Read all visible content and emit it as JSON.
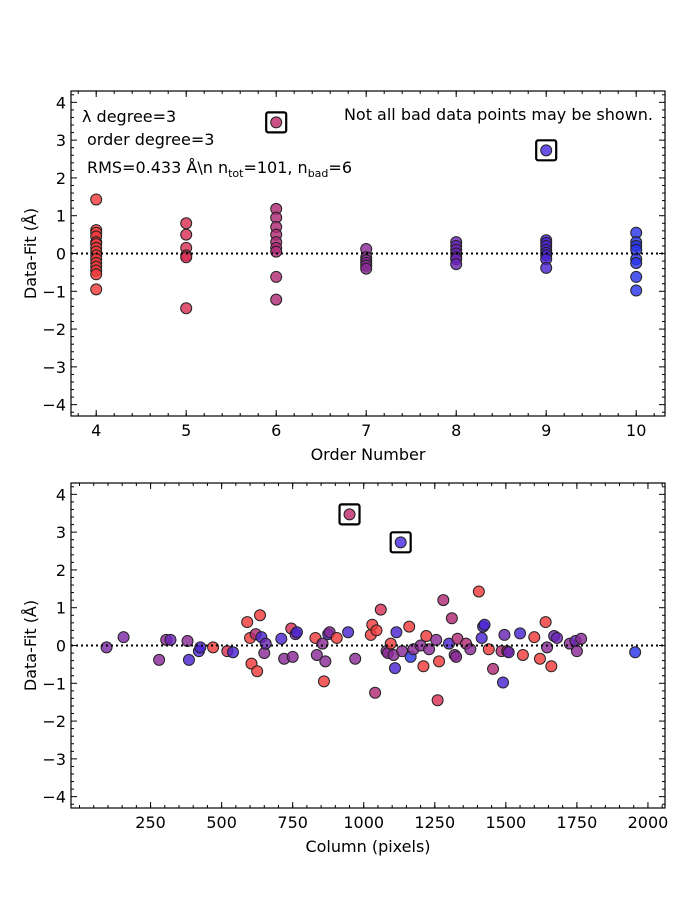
{
  "chart_data": [
    {
      "type": "scatter",
      "xlabel": "Order Number",
      "ylabel": "Data-Fit (Å)",
      "xlim": [
        3.72,
        10.32
      ],
      "ylim": [
        -4.3,
        4.3
      ],
      "xticks": [
        "4",
        "5",
        "6",
        "7",
        "8",
        "9",
        "10"
      ],
      "yticks": [
        "−4",
        "−3",
        "−2",
        "−1",
        "0",
        "1",
        "2",
        "3",
        "4"
      ],
      "annotations": {
        "lambda_degree": "λ degree=3",
        "order_degree": "order degree=3",
        "rms_prefix": "RMS=0.433 Å\\n n",
        "ntot_sub": "tot",
        "ntot_value": "=101, n",
        "nbad_sub": "bad",
        "nbad_value": "=6",
        "warning": "Not all bad data points may be shown."
      },
      "good_points": [
        [
          4,
          1.43,
          "#f03a3a"
        ],
        [
          4,
          0.62,
          "#f03a3a"
        ],
        [
          4,
          0.55,
          "#f03a3a"
        ],
        [
          4,
          0.45,
          "#f03a3a"
        ],
        [
          4,
          0.3,
          "#f03a3a"
        ],
        [
          4,
          0.25,
          "#f03a3a"
        ],
        [
          4,
          0.15,
          "#f03a3a"
        ],
        [
          4,
          0.05,
          "#f03a3a"
        ],
        [
          4,
          -0.05,
          "#f03a3a"
        ],
        [
          4,
          -0.15,
          "#f03a3a"
        ],
        [
          4,
          -0.25,
          "#f03a3a"
        ],
        [
          4,
          -0.35,
          "#f03a3a"
        ],
        [
          4,
          -0.45,
          "#f03a3a"
        ],
        [
          4,
          -0.55,
          "#f03a3a"
        ],
        [
          4,
          -0.95,
          "#f03a3a"
        ],
        [
          5,
          0.8,
          "#d82f55"
        ],
        [
          5,
          0.5,
          "#d82f55"
        ],
        [
          5,
          0.15,
          "#d82f55"
        ],
        [
          5,
          -0.05,
          "#d82f55"
        ],
        [
          5,
          -0.1,
          "#d82f55"
        ],
        [
          5,
          -1.45,
          "#d82f55"
        ],
        [
          6,
          1.18,
          "#b02a75"
        ],
        [
          6,
          0.95,
          "#b02a75"
        ],
        [
          6,
          0.7,
          "#b02a75"
        ],
        [
          6,
          0.5,
          "#b02a75"
        ],
        [
          6,
          0.3,
          "#b02a75"
        ],
        [
          6,
          0.15,
          "#b02a75"
        ],
        [
          6,
          0.05,
          "#b02a75"
        ],
        [
          6,
          -0.62,
          "#b02a75"
        ],
        [
          6,
          -1.22,
          "#b02a75"
        ],
        [
          7,
          0.12,
          "#8a2a95"
        ],
        [
          7,
          -0.1,
          "#8a2a95"
        ],
        [
          7,
          -0.18,
          "#8a2a95"
        ],
        [
          7,
          -0.25,
          "#8a2a95"
        ],
        [
          7,
          -0.32,
          "#8a2a95"
        ],
        [
          7,
          -0.4,
          "#8a2a95"
        ],
        [
          8,
          0.3,
          "#6a25b5"
        ],
        [
          8,
          0.2,
          "#6a25b5"
        ],
        [
          8,
          0.1,
          "#6a25b5"
        ],
        [
          8,
          0.0,
          "#6a25b5"
        ],
        [
          8,
          -0.1,
          "#6a25b5"
        ],
        [
          8,
          -0.15,
          "#6a25b5"
        ],
        [
          8,
          -0.28,
          "#6a25b5"
        ],
        [
          9,
          0.35,
          "#4a25d0"
        ],
        [
          9,
          0.28,
          "#4a25d0"
        ],
        [
          9,
          0.2,
          "#4a25d0"
        ],
        [
          9,
          0.1,
          "#4a25d0"
        ],
        [
          9,
          0.02,
          "#4a25d0"
        ],
        [
          9,
          -0.05,
          "#4a25d0"
        ],
        [
          9,
          -0.15,
          "#4a25d0"
        ],
        [
          9,
          -0.38,
          "#4a25d0"
        ],
        [
          10,
          0.55,
          "#2a35e8"
        ],
        [
          10,
          0.3,
          "#2a35e8"
        ],
        [
          10,
          0.2,
          "#2a35e8"
        ],
        [
          10,
          0.1,
          "#2a35e8"
        ],
        [
          10,
          -0.15,
          "#2a35e8"
        ],
        [
          10,
          -0.25,
          "#2a35e8"
        ],
        [
          10,
          -0.62,
          "#2a35e8"
        ],
        [
          10,
          -0.98,
          "#2a35e8"
        ]
      ],
      "bad_points": [
        [
          6,
          3.47,
          "#c02a6a"
        ],
        [
          9,
          2.73,
          "#4a2ae0"
        ]
      ]
    },
    {
      "type": "scatter",
      "xlabel": "Column (pixels)",
      "ylabel": "Data-Fit (Å)",
      "xlim": [
        -30,
        2060
      ],
      "ylim": [
        -4.3,
        4.3
      ],
      "xticks": [
        "250",
        "500",
        "750",
        "1000",
        "1250",
        "1500",
        "1750",
        "2000"
      ],
      "yticks": [
        "−4",
        "−3",
        "−2",
        "−1",
        "0",
        "1",
        "2",
        "3",
        "4"
      ],
      "good_points": [
        [
          95,
          -0.05,
          "#7a28a5"
        ],
        [
          155,
          0.22,
          "#7a28a5"
        ],
        [
          280,
          -0.38,
          "#8a2a95"
        ],
        [
          305,
          0.15,
          "#8a2a95"
        ],
        [
          320,
          0.15,
          "#6a25b5"
        ],
        [
          380,
          0.12,
          "#8a2a95"
        ],
        [
          385,
          -0.38,
          "#4a25d0"
        ],
        [
          420,
          -0.15,
          "#4a25d0"
        ],
        [
          425,
          -0.05,
          "#4a25d0"
        ],
        [
          470,
          -0.05,
          "#f03a3a"
        ],
        [
          520,
          -0.15,
          "#d82f55"
        ],
        [
          540,
          -0.18,
          "#4a25d0"
        ],
        [
          590,
          0.62,
          "#f03a3a"
        ],
        [
          600,
          0.2,
          "#f03a3a"
        ],
        [
          605,
          -0.48,
          "#f03a3a"
        ],
        [
          620,
          0.3,
          "#b02a75"
        ],
        [
          625,
          -0.68,
          "#f03a3a"
        ],
        [
          635,
          0.8,
          "#f03a3a"
        ],
        [
          640,
          0.22,
          "#4a25d0"
        ],
        [
          650,
          -0.2,
          "#8a2a95"
        ],
        [
          655,
          0.05,
          "#6a25b5"
        ],
        [
          710,
          0.18,
          "#4a25d0"
        ],
        [
          720,
          -0.35,
          "#8a2a95"
        ],
        [
          745,
          0.45,
          "#d82f55"
        ],
        [
          750,
          -0.3,
          "#8a2a95"
        ],
        [
          760,
          0.3,
          "#6a25b5"
        ],
        [
          765,
          0.35,
          "#4a25d0"
        ],
        [
          830,
          0.2,
          "#f03a3a"
        ],
        [
          835,
          -0.25,
          "#8a2a95"
        ],
        [
          855,
          0.05,
          "#8a2a95"
        ],
        [
          860,
          -0.95,
          "#f03a3a"
        ],
        [
          865,
          -0.42,
          "#8a2a95"
        ],
        [
          875,
          0.3,
          "#4a25d0"
        ],
        [
          880,
          0.35,
          "#8a2a95"
        ],
        [
          905,
          0.2,
          "#f03a3a"
        ],
        [
          945,
          0.35,
          "#4a25d0"
        ],
        [
          970,
          -0.35,
          "#8a2a95"
        ],
        [
          1025,
          0.28,
          "#f03a3a"
        ],
        [
          1030,
          0.55,
          "#f03a3a"
        ],
        [
          1040,
          -1.25,
          "#b02a75"
        ],
        [
          1045,
          0.4,
          "#f03a3a"
        ],
        [
          1060,
          0.95,
          "#d82f55"
        ],
        [
          1080,
          -0.15,
          "#8a2a95"
        ],
        [
          1085,
          -0.2,
          "#8a2a95"
        ],
        [
          1095,
          0.05,
          "#f03a3a"
        ],
        [
          1105,
          -0.25,
          "#8a2a95"
        ],
        [
          1110,
          -0.6,
          "#4a25d0"
        ],
        [
          1115,
          0.35,
          "#4a25d0"
        ],
        [
          1135,
          -0.15,
          "#8a2a95"
        ],
        [
          1160,
          0.5,
          "#f03a3a"
        ],
        [
          1165,
          -0.3,
          "#2a35e8"
        ],
        [
          1175,
          -0.1,
          "#8a2a95"
        ],
        [
          1200,
          0.0,
          "#8a2a95"
        ],
        [
          1210,
          -0.55,
          "#f03a3a"
        ],
        [
          1220,
          0.25,
          "#f03a3a"
        ],
        [
          1230,
          -0.1,
          "#8a2a95"
        ],
        [
          1255,
          0.15,
          "#8a2a95"
        ],
        [
          1260,
          -1.45,
          "#d82f55"
        ],
        [
          1265,
          -0.42,
          "#f03a3a"
        ],
        [
          1280,
          1.2,
          "#b02a75"
        ],
        [
          1300,
          0.05,
          "#4a25d0"
        ],
        [
          1310,
          0.72,
          "#b02a75"
        ],
        [
          1320,
          -0.25,
          "#8a2a95"
        ],
        [
          1325,
          -0.3,
          "#8a2a95"
        ],
        [
          1330,
          0.18,
          "#b02a75"
        ],
        [
          1360,
          0.05,
          "#b02a75"
        ],
        [
          1375,
          -0.1,
          "#8a2a95"
        ],
        [
          1405,
          1.43,
          "#f03a3a"
        ],
        [
          1415,
          0.2,
          "#4a25d0"
        ],
        [
          1420,
          0.5,
          "#4a25d0"
        ],
        [
          1425,
          0.55,
          "#4a25d0"
        ],
        [
          1440,
          -0.1,
          "#f03a3a"
        ],
        [
          1455,
          -0.62,
          "#b02a75"
        ],
        [
          1485,
          -0.15,
          "#b02a75"
        ],
        [
          1490,
          -0.98,
          "#4a25d0"
        ],
        [
          1495,
          0.28,
          "#6a25b5"
        ],
        [
          1505,
          -0.15,
          "#b02a75"
        ],
        [
          1510,
          -0.18,
          "#6a25b5"
        ],
        [
          1550,
          0.32,
          "#4a25d0"
        ],
        [
          1560,
          -0.25,
          "#f03a3a"
        ],
        [
          1600,
          0.22,
          "#f03a3a"
        ],
        [
          1620,
          -0.35,
          "#f03a3a"
        ],
        [
          1640,
          0.62,
          "#f03a3a"
        ],
        [
          1645,
          -0.05,
          "#8a2a95"
        ],
        [
          1660,
          -0.55,
          "#f03a3a"
        ],
        [
          1670,
          0.25,
          "#6a25b5"
        ],
        [
          1680,
          0.2,
          "#6a25b5"
        ],
        [
          1725,
          0.05,
          "#8a2a95"
        ],
        [
          1745,
          0.12,
          "#6a25b5"
        ],
        [
          1750,
          -0.15,
          "#8a2a95"
        ],
        [
          1765,
          0.18,
          "#8a2a95"
        ],
        [
          1955,
          -0.18,
          "#2a35e8"
        ]
      ],
      "bad_points": [
        [
          950,
          3.47,
          "#c02a6a"
        ],
        [
          1130,
          2.73,
          "#4a2ae0"
        ]
      ]
    }
  ]
}
